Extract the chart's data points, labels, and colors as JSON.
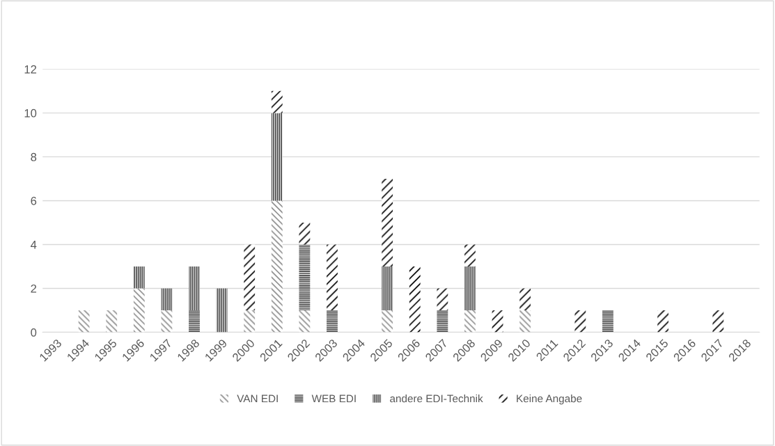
{
  "chart_data": {
    "type": "bar",
    "stacked": true,
    "categories": [
      "1993",
      "1994",
      "1995",
      "1996",
      "1997",
      "1998",
      "1999",
      "2000",
      "2001",
      "2002",
      "2003",
      "2004",
      "2005",
      "2006",
      "2007",
      "2008",
      "2009",
      "2010",
      "2011",
      "2012",
      "2013",
      "2014",
      "2015",
      "2016",
      "2017",
      "2018"
    ],
    "series": [
      {
        "name": "VAN EDI",
        "color": "#8c8c8c",
        "values": [
          0,
          1,
          1,
          2,
          1,
          0,
          0,
          1,
          6,
          1,
          0,
          0,
          1,
          0,
          0,
          1,
          0,
          1,
          0,
          0,
          0,
          0,
          0,
          0,
          0,
          0
        ]
      },
      {
        "name": "WEB EDI",
        "color": "#404040",
        "values": [
          0,
          0,
          0,
          0,
          0,
          1,
          0,
          0,
          0,
          3,
          1,
          0,
          0,
          0,
          1,
          0,
          0,
          0,
          0,
          0,
          1,
          0,
          0,
          0,
          0,
          0
        ]
      },
      {
        "name": "andere EDI-Technik",
        "color": "#404040",
        "values": [
          0,
          0,
          0,
          1,
          1,
          2,
          2,
          0,
          4,
          0,
          0,
          0,
          2,
          0,
          0,
          2,
          0,
          0,
          0,
          0,
          0,
          0,
          0,
          0,
          0,
          0
        ]
      },
      {
        "name": "Keine Angabe",
        "color": "#000000",
        "values": [
          0,
          0,
          0,
          0,
          0,
          0,
          0,
          3,
          1,
          1,
          3,
          0,
          4,
          3,
          1,
          1,
          1,
          1,
          0,
          1,
          0,
          0,
          1,
          0,
          1,
          0
        ]
      }
    ],
    "ylim": [
      0,
      12
    ],
    "yticks": [
      0,
      2,
      4,
      6,
      8,
      10,
      12
    ],
    "grid": "y",
    "legend": "bottom"
  }
}
